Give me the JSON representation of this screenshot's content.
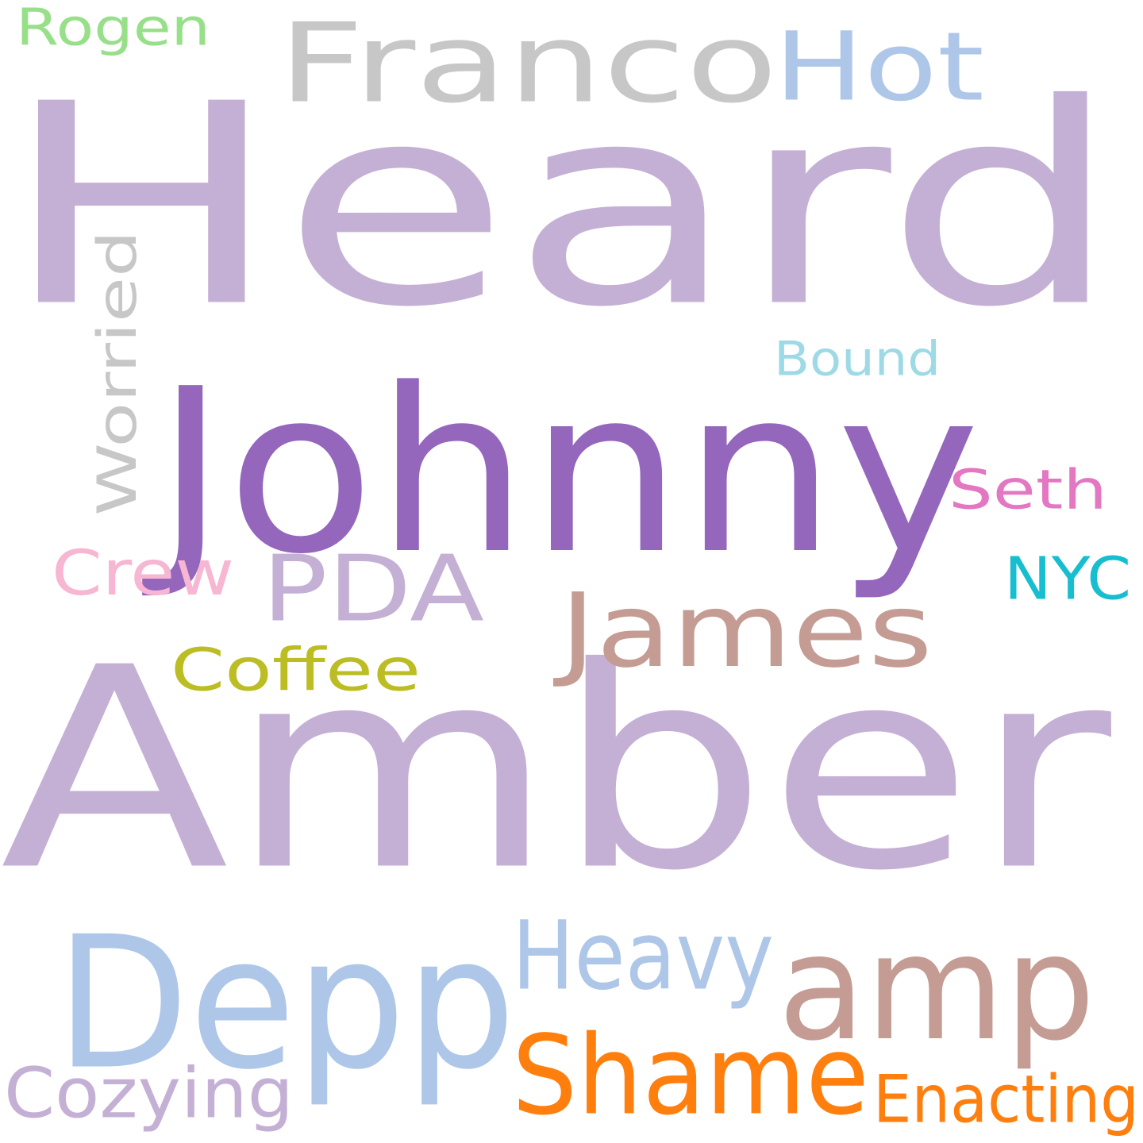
{
  "words": [
    {
      "id": "heard",
      "text": "Heard",
      "color": "#c5b0d5",
      "vertical": false
    },
    {
      "id": "amber",
      "text": "Amber",
      "color": "#c5b0d5",
      "vertical": false
    },
    {
      "id": "johnny",
      "text": "Johnny",
      "color": "#9467bd",
      "vertical": false
    },
    {
      "id": "depp",
      "text": "Depp",
      "color": "#aec7e8",
      "vertical": false
    },
    {
      "id": "amp",
      "text": "amp",
      "color": "#c49c94",
      "vertical": false
    },
    {
      "id": "franco",
      "text": "Franco",
      "color": "#c7c7c7",
      "vertical": false
    },
    {
      "id": "james",
      "text": "James",
      "color": "#c49c94",
      "vertical": false
    },
    {
      "id": "shame",
      "text": "Shame",
      "color": "#ff7f0e",
      "vertical": false
    },
    {
      "id": "pda",
      "text": "PDA",
      "color": "#c5b0d5",
      "vertical": false
    },
    {
      "id": "hot",
      "text": "Hot",
      "color": "#aec7e8",
      "vertical": false
    },
    {
      "id": "heavy",
      "text": "Heavy",
      "color": "#aec7e8",
      "vertical": false
    },
    {
      "id": "worried",
      "text": "Worried",
      "color": "#c7c7c7",
      "vertical": true
    },
    {
      "id": "coffee",
      "text": "Coffee",
      "color": "#bcbd22",
      "vertical": false
    },
    {
      "id": "crew",
      "text": "Crew",
      "color": "#f7b6d2",
      "vertical": false
    },
    {
      "id": "cozying",
      "text": "Cozying",
      "color": "#c5b0d5",
      "vertical": false
    },
    {
      "id": "enacting",
      "text": "Enacting",
      "color": "#ff7f0e",
      "vertical": false
    },
    {
      "id": "seth",
      "text": "Seth",
      "color": "#e377c2",
      "vertical": false
    },
    {
      "id": "nyc",
      "text": "NYC",
      "color": "#17becf",
      "vertical": false
    },
    {
      "id": "rogen",
      "text": "Rogen",
      "color": "#98df8a",
      "vertical": false
    },
    {
      "id": "bound",
      "text": "Bound",
      "color": "#9edae5",
      "vertical": false
    }
  ]
}
